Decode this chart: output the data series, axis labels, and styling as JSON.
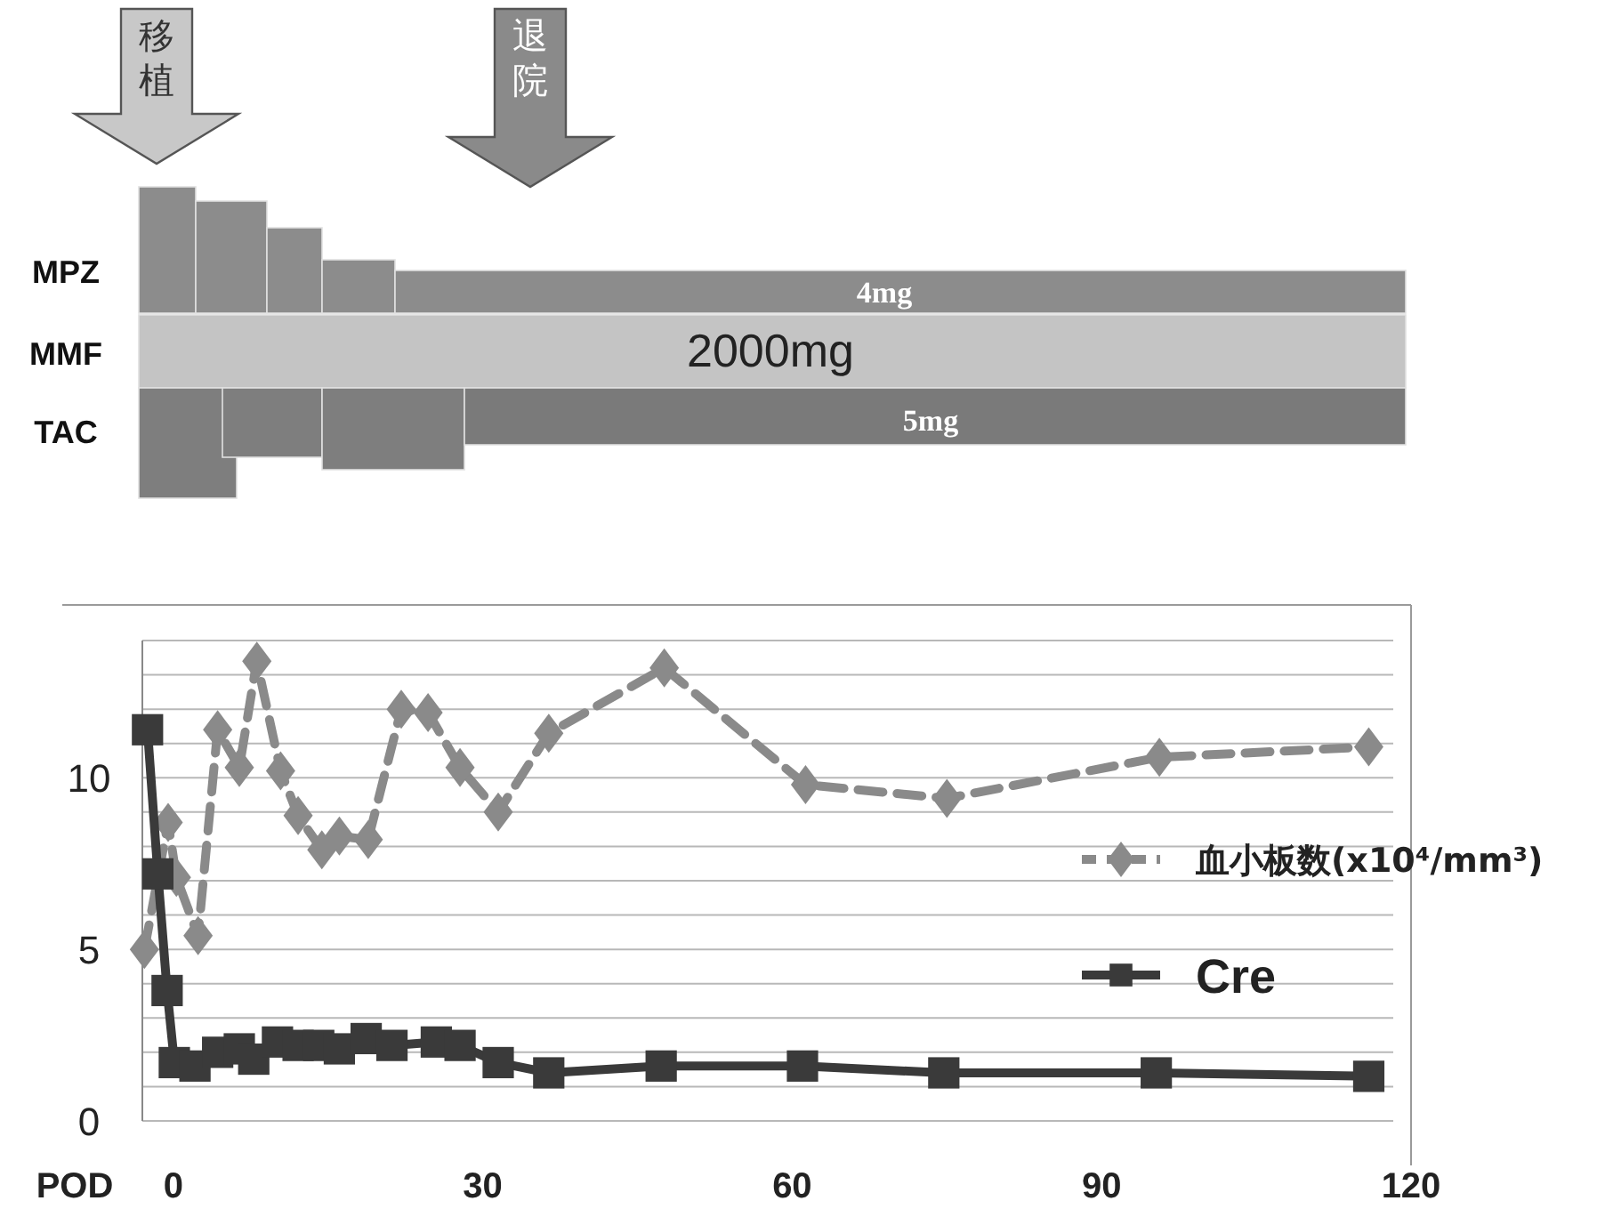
{
  "chart_data": [
    {
      "type": "other",
      "categories": [
        "MPZ",
        "MMF",
        "TAC"
      ],
      "annotations": [
        "4mg",
        "2000mg",
        "5mg",
        "移植",
        "退院"
      ]
    },
    {
      "type": "line",
      "xlabel": "POD",
      "xlim": [
        -3,
        120
      ],
      "xticks": [
        0,
        30,
        60,
        90,
        120
      ],
      "ylim": [
        0,
        14
      ],
      "yticks": [
        0,
        {
          "value": 1,
          "label": null
        },
        {
          "value": 2,
          "label": null
        },
        {
          "value": 3,
          "label": null
        },
        {
          "value": 4,
          "label": null
        },
        5,
        {
          "value": 6,
          "label": null
        },
        {
          "value": 7,
          "label": null
        },
        {
          "value": 8,
          "label": null
        },
        {
          "value": 9,
          "label": null
        },
        10,
        {
          "value": 11,
          "label": null
        },
        {
          "value": 12,
          "label": null
        },
        {
          "value": 13,
          "label": null
        },
        {
          "value": 14,
          "label": null
        }
      ],
      "grid": "y",
      "legend": "right",
      "series": [
        {
          "name": "血小板数(x10⁴/mm³)",
          "color": "#8a8a8a",
          "marker": "diamond",
          "line_style": "dashed",
          "x": [
            -2.8,
            -0.5,
            0.3,
            2.4,
            4.3,
            6.4,
            8.1,
            10.4,
            12.1,
            14.4,
            16.1,
            18.9,
            22.1,
            24.7,
            27.8,
            31.5,
            36.4,
            47.6,
            61.3,
            75,
            95.6,
            115.9
          ],
          "values": [
            5.0,
            8.7,
            7.1,
            5.4,
            11.4,
            10.3,
            13.4,
            10.2,
            8.9,
            7.9,
            8.3,
            8.2,
            12.0,
            11.9,
            10.3,
            9.0,
            11.3,
            13.2,
            9.8,
            9.4,
            10.6,
            10.9
          ]
        },
        {
          "name": "Cre",
          "color": "#3a3a3a",
          "marker": "square",
          "line_style": "solid",
          "x": [
            -2.5,
            -1.5,
            -0.6,
            0.1,
            2.1,
            4.3,
            6.4,
            7.8,
            10.1,
            12.1,
            14.1,
            16.1,
            18.7,
            21.2,
            25.5,
            27.8,
            31.5,
            36.4,
            47.3,
            61,
            74.7,
            95.3,
            115.9
          ],
          "values": [
            11.4,
            7.2,
            3.8,
            1.7,
            1.6,
            2.0,
            2.1,
            1.8,
            2.3,
            2.2,
            2.2,
            2.1,
            2.4,
            2.2,
            2.3,
            2.2,
            1.7,
            1.4,
            1.6,
            1.6,
            1.4,
            1.4,
            1.3
          ]
        }
      ]
    }
  ]
}
